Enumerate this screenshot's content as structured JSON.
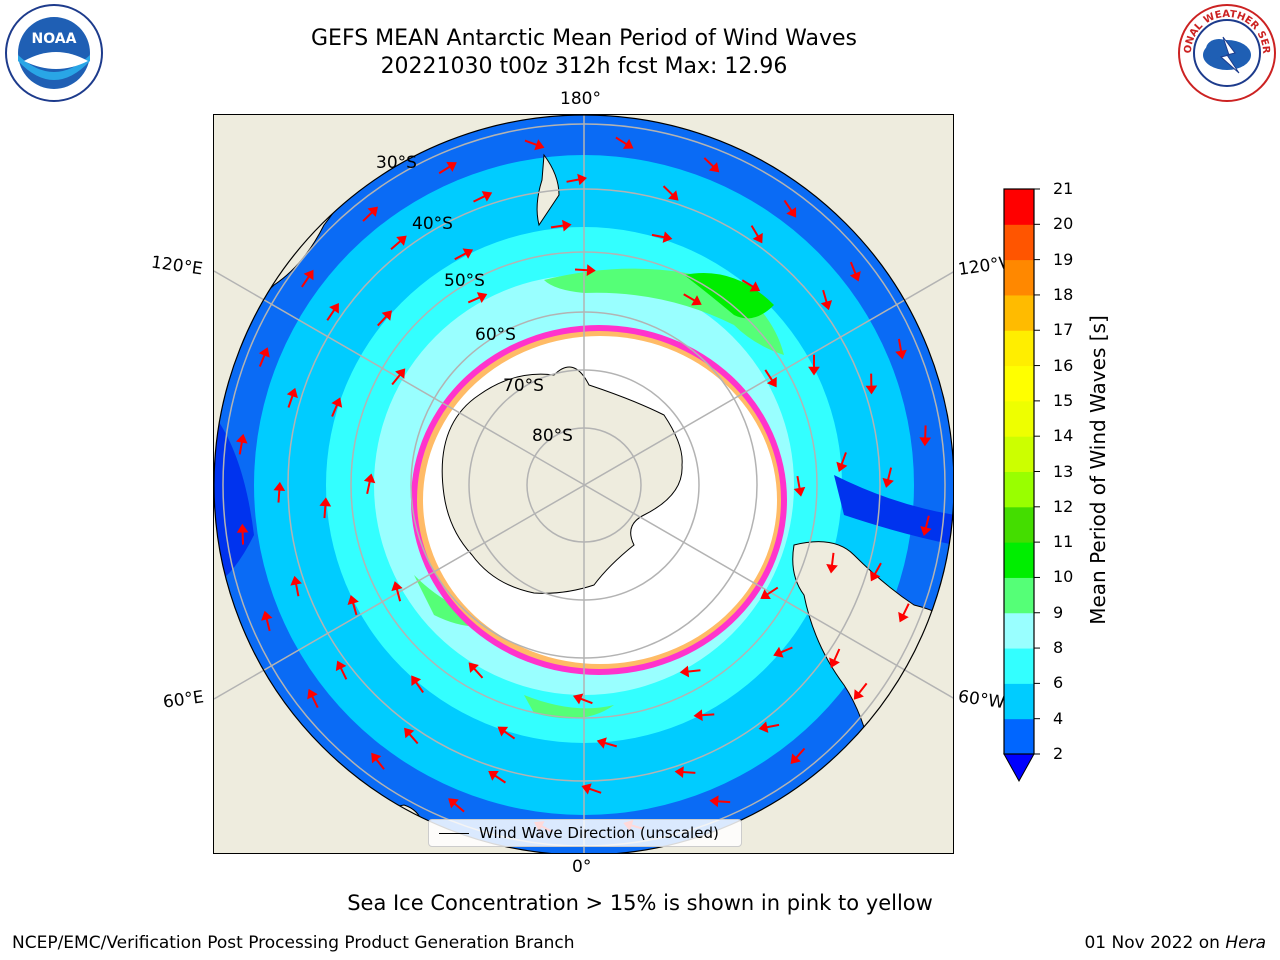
{
  "header": {
    "title_line1": "GEFS MEAN Antarctic Mean Period of Wind Waves",
    "title_line2": "20221030 t00z 312h fcst   Max: 12.96"
  },
  "logos": {
    "left": "NOAA",
    "right": "NATIONAL WEATHER SERVICE"
  },
  "map": {
    "projection": "south-polar-stereographic",
    "lon_labels": {
      "top": "180°",
      "bottom": "0°",
      "upper_left": "120°E",
      "upper_right": "120°W",
      "lower_left": "60°E",
      "lower_right": "60°W"
    },
    "lat_labels": [
      "30°S",
      "40°S",
      "50°S",
      "60°S",
      "70°S",
      "80°S"
    ],
    "legend_label": "Wind Wave Direction (unscaled)",
    "colors": {
      "land": "#eeecde",
      "ice": "#ffffff",
      "ice_edge": [
        "#ff33cc",
        "#ff99cc",
        "#ffcc44"
      ],
      "arrow": "#ff0000"
    }
  },
  "colorbar": {
    "label": "Mean Period of Wind Waves [s]",
    "ticks": [
      "2",
      "4",
      "6",
      "8",
      "9",
      "10",
      "11",
      "12",
      "13",
      "14",
      "15",
      "16",
      "17",
      "18",
      "19",
      "20",
      "21"
    ],
    "colors": [
      "#0066ff",
      "#00ccff",
      "#33ffff",
      "#99ffff",
      "#55ff77",
      "#00ee00",
      "#44dd00",
      "#99ff00",
      "#ccff00",
      "#eeff00",
      "#ffff00",
      "#ffee00",
      "#ffbb00",
      "#ff8800",
      "#ff5500",
      "#ff0000"
    ],
    "under_color": "#0000ff"
  },
  "footnote": "Sea Ice Concentration > 15% is shown in pink to yellow",
  "footer": {
    "credit": "NCEP/EMC/Verification Post Processing Product Generation Branch",
    "date": "01 Nov 2022 on",
    "machine": "Hera"
  }
}
